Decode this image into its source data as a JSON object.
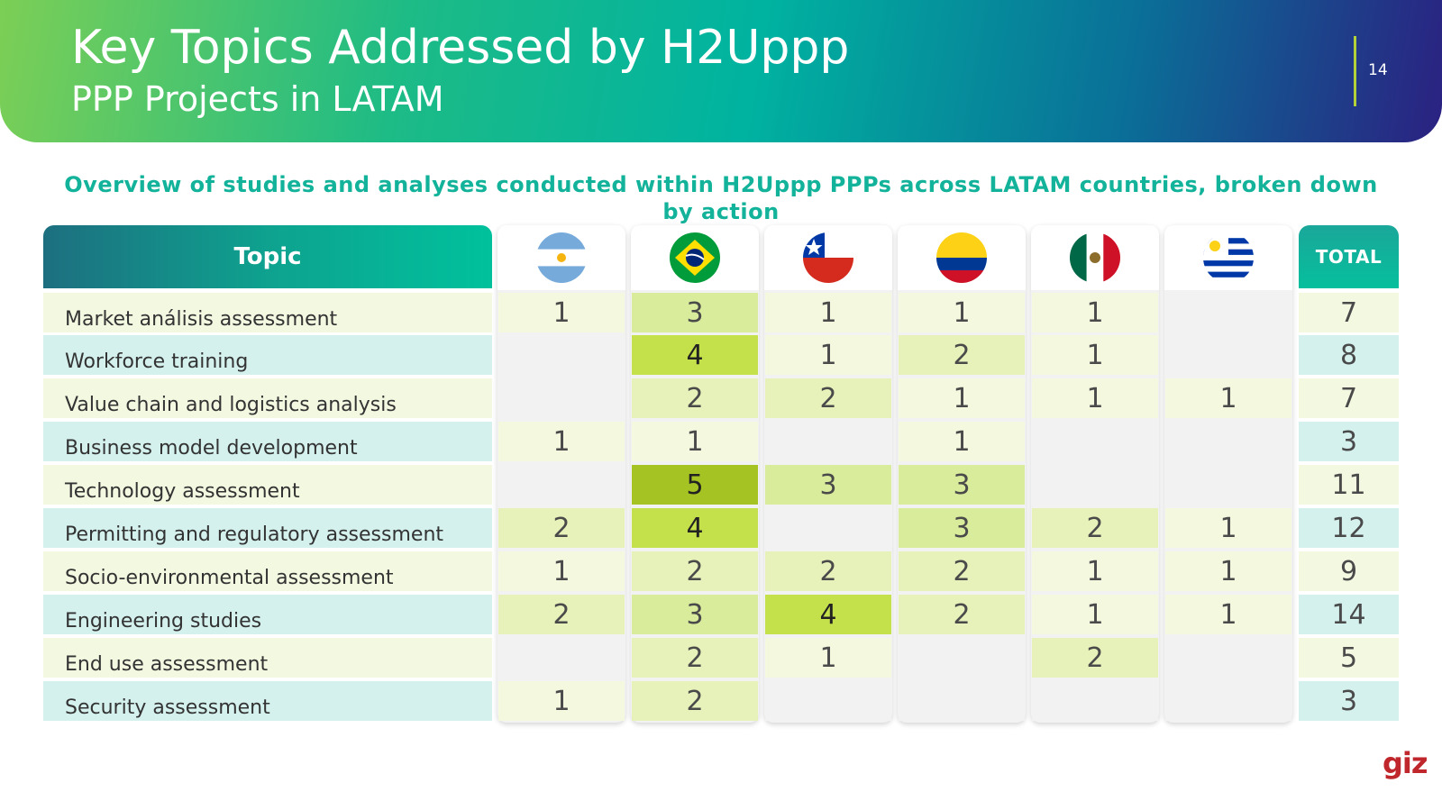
{
  "header": {
    "title": "Key Topics Addressed by H2Uppp",
    "subtitle": "PPP Projects in LATAM",
    "page_number": "14"
  },
  "caption": "Overview of studies and analyses conducted within H2Uppp PPPs across LATAM countries, broken down by action",
  "table": {
    "topic_header": "Topic",
    "total_header": "TOTAL",
    "countries": [
      "argentina-flag-icon",
      "brazil-flag-icon",
      "chile-flag-icon",
      "colombia-flag-icon",
      "mexico-flag-icon",
      "uruguay-flag-icon"
    ],
    "rows": [
      {
        "topic": "Market análisis assessment",
        "values": [
          "1",
          "3",
          "1",
          "1",
          "1",
          ""
        ],
        "total": "7"
      },
      {
        "topic": "Workforce training",
        "values": [
          "",
          "4",
          "1",
          "2",
          "1",
          ""
        ],
        "total": "8"
      },
      {
        "topic": "Value chain and logistics analysis",
        "values": [
          "",
          "2",
          "2",
          "1",
          "1",
          "1"
        ],
        "total": "7"
      },
      {
        "topic": "Business model development",
        "values": [
          "1",
          "1",
          "",
          "1",
          "",
          ""
        ],
        "total": "3"
      },
      {
        "topic": "Technology assessment",
        "values": [
          "",
          "5",
          "3",
          "3",
          "",
          ""
        ],
        "total": "11"
      },
      {
        "topic": "Permitting and regulatory assessment",
        "values": [
          "2",
          "4",
          "",
          "3",
          "2",
          "1"
        ],
        "total": "12"
      },
      {
        "topic": "Socio-environmental assessment",
        "values": [
          "1",
          "2",
          "2",
          "2",
          "1",
          "1"
        ],
        "total": "9"
      },
      {
        "topic": "Engineering studies",
        "values": [
          "2",
          "3",
          "4",
          "2",
          "1",
          "1"
        ],
        "total": "14"
      },
      {
        "topic": "End use assessment",
        "values": [
          "",
          "2",
          "1",
          "",
          "2",
          ""
        ],
        "total": "5"
      },
      {
        "topic": "Security assessment",
        "values": [
          "1",
          "2",
          "",
          "",
          "",
          ""
        ],
        "total": "3"
      }
    ]
  },
  "heat_colors": {
    "1": "#f3f8df",
    "2": "#e6f2b9",
    "3": "#d9ec9b",
    "4": "#c4e04b",
    "5": "#a6c324"
  },
  "row_colors": {
    "even": "#f3f8e1",
    "odd": "#d4f1ee"
  },
  "footer": {
    "logo_text": "giz"
  }
}
